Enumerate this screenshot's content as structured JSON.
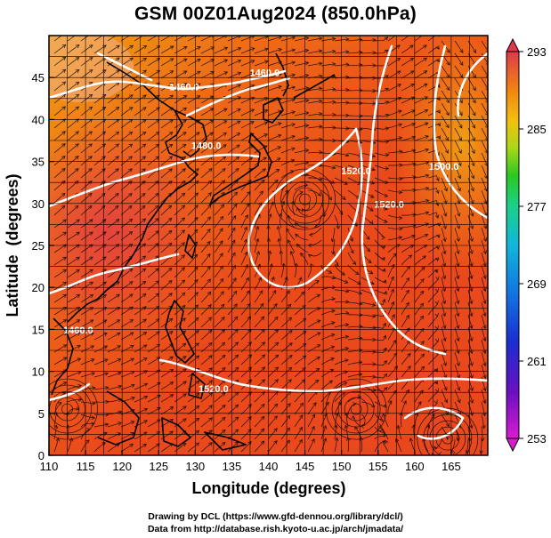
{
  "title": "GSM 00Z01Aug2024 (850.0hPa)",
  "credits": {
    "line1": "Drawing by DCL (https://www.gfd-dennou.org/library/dcl/)",
    "line2": "Data from http://database.rish.kyoto-u.ac.jp/arch/jmadata/"
  },
  "chart_data": {
    "type": "heatmap",
    "xlabel": "Longitude (degrees)",
    "ylabel": "Latitude  (degrees)",
    "xlim": [
      110,
      170
    ],
    "ylim": [
      0,
      50
    ],
    "xticks": [
      "110",
      "115",
      "120",
      "125",
      "130",
      "135",
      "140",
      "145",
      "150",
      "155",
      "160",
      "165"
    ],
    "yticks": [
      "0",
      "5",
      "10",
      "15",
      "20",
      "25",
      "30",
      "35",
      "40",
      "45"
    ],
    "grid": true,
    "colorbar": {
      "min": 253,
      "max": 293,
      "ticks": [
        "293",
        "285",
        "277",
        "269",
        "261",
        "253"
      ],
      "colors": [
        "#d81bd0",
        "#3a0db5",
        "#1a46d6",
        "#12a9e6",
        "#1bcf9e",
        "#27c52a",
        "#a5d816",
        "#f2c010",
        "#f08a12",
        "#e8461d",
        "#e0384a"
      ]
    },
    "contour_labels": [
      {
        "text": "1460.0",
        "lon": 128.5,
        "lat": 43.5
      },
      {
        "text": "1480.0",
        "lon": 131.5,
        "lat": 36.5
      },
      {
        "text": "1460.0",
        "lon": 139.5,
        "lat": 45.2
      },
      {
        "text": "1520.0",
        "lon": 152.0,
        "lat": 33.5
      },
      {
        "text": "1520.0",
        "lon": 156.5,
        "lat": 29.5
      },
      {
        "text": "1500.0",
        "lon": 164.0,
        "lat": 34.0
      },
      {
        "text": "1460.0",
        "lon": 114.0,
        "lat": 14.5
      },
      {
        "text": "1520.0",
        "lon": 132.5,
        "lat": 7.5
      }
    ],
    "cyclones": [
      {
        "lon": 145.0,
        "lat": 30.5
      },
      {
        "lon": 152.0,
        "lat": 5.5
      },
      {
        "lon": 164.5,
        "lat": 2.0
      },
      {
        "lon": 112.5,
        "lat": 5.5
      }
    ]
  }
}
